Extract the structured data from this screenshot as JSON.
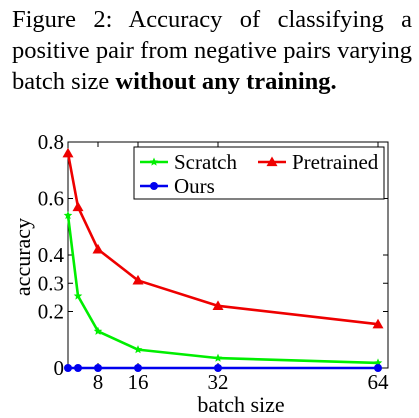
{
  "caption": {
    "prefix": "Figure 2:",
    "text": "Accuracy of classifying a positive pair from negative pairs varying batch size",
    "bold": "without any training."
  },
  "chart_data": {
    "type": "line",
    "xlabel": "batch size",
    "ylabel": "accuracy",
    "x_ticks": [
      8,
      16,
      32,
      64
    ],
    "y_ticks": [
      0,
      0.2,
      0.3,
      0.4,
      0.6,
      0.8
    ],
    "xlim": [
      2,
      66
    ],
    "ylim": [
      0,
      0.8
    ],
    "legend_position": "top-right",
    "series": [
      {
        "name": "Scratch",
        "color": "#00ee00",
        "marker": "star",
        "x": [
          2,
          4,
          8,
          16,
          32,
          64
        ],
        "y": [
          0.54,
          0.255,
          0.13,
          0.065,
          0.035,
          0.018
        ]
      },
      {
        "name": "Pretrained",
        "color": "#ee0000",
        "marker": "triangle",
        "x": [
          2,
          4,
          8,
          16,
          32,
          64
        ],
        "y": [
          0.76,
          0.57,
          0.42,
          0.31,
          0.22,
          0.155
        ]
      },
      {
        "name": "Ours",
        "color": "#0000ee",
        "marker": "circle",
        "x": [
          2,
          4,
          8,
          16,
          32,
          64
        ],
        "y": [
          0,
          0,
          0,
          0,
          0,
          0
        ]
      }
    ]
  }
}
